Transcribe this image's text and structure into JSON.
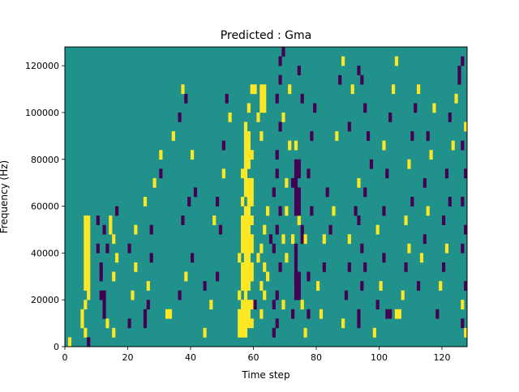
{
  "chart_data": {
    "type": "heatmap",
    "title": "Predicted : Gma",
    "xlabel": "Time step",
    "ylabel": "Frequency (Hz)",
    "xlim": [
      0,
      128
    ],
    "ylim": [
      0,
      128000
    ],
    "x_ticks": [
      0,
      20,
      40,
      60,
      80,
      100,
      120
    ],
    "y_ticks": [
      0,
      20000,
      40000,
      60000,
      80000,
      100000,
      120000
    ],
    "x_tick_labels": [
      "0",
      "20",
      "40",
      "60",
      "80",
      "100",
      "120"
    ],
    "y_tick_labels": [
      "0",
      "20000",
      "40000",
      "60000",
      "80000",
      "100000",
      "120000"
    ],
    "grid": false,
    "value_levels": {
      "low": 0,
      "mid": 1,
      "high": 2
    },
    "background_value": 1,
    "colors": {
      "low": "#440154",
      "mid": "#21918c",
      "high": "#fde725"
    },
    "cell_height_hz": 4000,
    "cells": [
      [
        1,
        0,
        2
      ],
      [
        5,
        2,
        2
      ],
      [
        5,
        3,
        2
      ],
      [
        6,
        1,
        2
      ],
      [
        6,
        4,
        2
      ],
      [
        7,
        0,
        0
      ],
      [
        7,
        5,
        2
      ],
      [
        11,
        5,
        0
      ],
      [
        13,
        2,
        2
      ],
      [
        6,
        6,
        2
      ],
      [
        6,
        7,
        2
      ],
      [
        6,
        8,
        2
      ],
      [
        6,
        9,
        2
      ],
      [
        6,
        10,
        2
      ],
      [
        6,
        11,
        2
      ],
      [
        6,
        12,
        2
      ],
      [
        6,
        13,
        2
      ],
      [
        7,
        6,
        2
      ],
      [
        7,
        7,
        2
      ],
      [
        7,
        8,
        2
      ],
      [
        7,
        9,
        2
      ],
      [
        7,
        10,
        2
      ],
      [
        7,
        11,
        2
      ],
      [
        7,
        12,
        2
      ],
      [
        7,
        13,
        2
      ],
      [
        12,
        3,
        0
      ],
      [
        12,
        4,
        0
      ],
      [
        12,
        5,
        0
      ],
      [
        11,
        7,
        0
      ],
      [
        11,
        8,
        0
      ],
      [
        10,
        10,
        0
      ],
      [
        13,
        10,
        0
      ],
      [
        12,
        12,
        0
      ],
      [
        10,
        13,
        0
      ],
      [
        14,
        12,
        2
      ],
      [
        14,
        13,
        2
      ],
      [
        15,
        1,
        2
      ],
      [
        15,
        7,
        2
      ],
      [
        16,
        9,
        2
      ],
      [
        15,
        11,
        2
      ],
      [
        16,
        14,
        0
      ],
      [
        20,
        2,
        0
      ],
      [
        21,
        5,
        2
      ],
      [
        22,
        8,
        2
      ],
      [
        20,
        10,
        0
      ],
      [
        22,
        12,
        2
      ],
      [
        25,
        2,
        0
      ],
      [
        25,
        3,
        0
      ],
      [
        26,
        4,
        0
      ],
      [
        26,
        6,
        2
      ],
      [
        27,
        9,
        0
      ],
      [
        27,
        12,
        0
      ],
      [
        25,
        15,
        2
      ],
      [
        28,
        17,
        2
      ],
      [
        30,
        18,
        0
      ],
      [
        30,
        20,
        2
      ],
      [
        32,
        3,
        2
      ],
      [
        33,
        3,
        2
      ],
      [
        36,
        5,
        0
      ],
      [
        38,
        7,
        2
      ],
      [
        40,
        9,
        0
      ],
      [
        37,
        13,
        0
      ],
      [
        39,
        15,
        0
      ],
      [
        41,
        16,
        0
      ],
      [
        40,
        20,
        2
      ],
      [
        34,
        22,
        2
      ],
      [
        36,
        24,
        0
      ],
      [
        38,
        26,
        0
      ],
      [
        37,
        27,
        2
      ],
      [
        44,
        6,
        0
      ],
      [
        44,
        1,
        2
      ],
      [
        46,
        4,
        2
      ],
      [
        48,
        7,
        0
      ],
      [
        47,
        13,
        2
      ],
      [
        49,
        12,
        0
      ],
      [
        48,
        15,
        0
      ],
      [
        50,
        18,
        2
      ],
      [
        50,
        21,
        0
      ],
      [
        52,
        24,
        2
      ],
      [
        51,
        26,
        0
      ],
      [
        55,
        1,
        2
      ],
      [
        55,
        2,
        2
      ],
      [
        55,
        3,
        2
      ],
      [
        55,
        5,
        2
      ],
      [
        55,
        9,
        2
      ],
      [
        56,
        1,
        2
      ],
      [
        56,
        2,
        2
      ],
      [
        56,
        3,
        2
      ],
      [
        56,
        4,
        2
      ],
      [
        56,
        6,
        2
      ],
      [
        56,
        7,
        2
      ],
      [
        56,
        8,
        2
      ],
      [
        56,
        10,
        2
      ],
      [
        56,
        11,
        2
      ],
      [
        56,
        12,
        2
      ],
      [
        56,
        13,
        2
      ],
      [
        56,
        15,
        2
      ],
      [
        56,
        18,
        2
      ],
      [
        57,
        1,
        2
      ],
      [
        57,
        2,
        2
      ],
      [
        57,
        3,
        2
      ],
      [
        57,
        4,
        2
      ],
      [
        57,
        5,
        2
      ],
      [
        57,
        6,
        2
      ],
      [
        57,
        7,
        2
      ],
      [
        57,
        8,
        2
      ],
      [
        57,
        9,
        2
      ],
      [
        57,
        10,
        2
      ],
      [
        57,
        11,
        2
      ],
      [
        57,
        12,
        2
      ],
      [
        57,
        13,
        2
      ],
      [
        57,
        14,
        2
      ],
      [
        57,
        16,
        2
      ],
      [
        57,
        17,
        2
      ],
      [
        57,
        18,
        2
      ],
      [
        57,
        19,
        2
      ],
      [
        57,
        20,
        2
      ],
      [
        57,
        21,
        2
      ],
      [
        57,
        22,
        2
      ],
      [
        57,
        23,
        2
      ],
      [
        58,
        2,
        2
      ],
      [
        58,
        3,
        2
      ],
      [
        58,
        4,
        2
      ],
      [
        58,
        6,
        2
      ],
      [
        58,
        7,
        2
      ],
      [
        58,
        8,
        2
      ],
      [
        58,
        9,
        2
      ],
      [
        58,
        10,
        2
      ],
      [
        58,
        11,
        2
      ],
      [
        58,
        12,
        2
      ],
      [
        58,
        13,
        2
      ],
      [
        58,
        14,
        2
      ],
      [
        58,
        15,
        2
      ],
      [
        58,
        16,
        2
      ],
      [
        58,
        17,
        2
      ],
      [
        58,
        19,
        2
      ],
      [
        58,
        20,
        2
      ],
      [
        58,
        21,
        2
      ],
      [
        58,
        22,
        2
      ],
      [
        59,
        2,
        2
      ],
      [
        59,
        4,
        2
      ],
      [
        59,
        7,
        2
      ],
      [
        59,
        8,
        2
      ],
      [
        59,
        10,
        2
      ],
      [
        59,
        11,
        2
      ],
      [
        59,
        13,
        2
      ],
      [
        59,
        15,
        2
      ],
      [
        59,
        16,
        2
      ],
      [
        59,
        17,
        2
      ],
      [
        59,
        20,
        2
      ],
      [
        60,
        4,
        0
      ],
      [
        61,
        9,
        2
      ],
      [
        62,
        10,
        2
      ],
      [
        62,
        3,
        2
      ],
      [
        62,
        6,
        2
      ],
      [
        63,
        5,
        2
      ],
      [
        63,
        8,
        2
      ],
      [
        63,
        12,
        2
      ],
      [
        64,
        7,
        2
      ],
      [
        65,
        11,
        0
      ],
      [
        64,
        14,
        2
      ],
      [
        62,
        22,
        2
      ],
      [
        61,
        24,
        2
      ],
      [
        62,
        25,
        2
      ],
      [
        63,
        25,
        2
      ],
      [
        62,
        26,
        2
      ],
      [
        63,
        26,
        2
      ],
      [
        62,
        27,
        2
      ],
      [
        63,
        27,
        2
      ],
      [
        60,
        27,
        2
      ],
      [
        59,
        27,
        2
      ],
      [
        58,
        25,
        2
      ],
      [
        66,
        1,
        0
      ],
      [
        67,
        2,
        0
      ],
      [
        66,
        4,
        0
      ],
      [
        67,
        5,
        0
      ],
      [
        68,
        8,
        0
      ],
      [
        66,
        10,
        0
      ],
      [
        67,
        12,
        0
      ],
      [
        68,
        14,
        0
      ],
      [
        66,
        16,
        0
      ],
      [
        67,
        18,
        0
      ],
      [
        67,
        20,
        0
      ],
      [
        68,
        23,
        0
      ],
      [
        67,
        26,
        0
      ],
      [
        68,
        28,
        0
      ],
      [
        68,
        30,
        0
      ],
      [
        69,
        31,
        0
      ],
      [
        69,
        4,
        2
      ],
      [
        70,
        9,
        2
      ],
      [
        69,
        11,
        2
      ],
      [
        70,
        14,
        2
      ],
      [
        70,
        17,
        2
      ],
      [
        71,
        21,
        2
      ],
      [
        69,
        24,
        2
      ],
      [
        71,
        27,
        2
      ],
      [
        72,
        3,
        0
      ],
      [
        73,
        7,
        0
      ],
      [
        72,
        11,
        2
      ],
      [
        74,
        13,
        2
      ],
      [
        72,
        17,
        0
      ],
      [
        73,
        21,
        2
      ],
      [
        75,
        26,
        0
      ],
      [
        74,
        29,
        0
      ],
      [
        73,
        5,
        0
      ],
      [
        73,
        6,
        0
      ],
      [
        73,
        7,
        0
      ],
      [
        73,
        8,
        0
      ],
      [
        73,
        9,
        0
      ],
      [
        73,
        10,
        0
      ],
      [
        73,
        14,
        0
      ],
      [
        73,
        15,
        0
      ],
      [
        73,
        16,
        0
      ],
      [
        73,
        17,
        0
      ],
      [
        73,
        18,
        0
      ],
      [
        73,
        19,
        0
      ],
      [
        74,
        5,
        0
      ],
      [
        74,
        6,
        0
      ],
      [
        74,
        7,
        0
      ],
      [
        74,
        14,
        0
      ],
      [
        74,
        15,
        0
      ],
      [
        74,
        16,
        0
      ],
      [
        74,
        18,
        0
      ],
      [
        74,
        19,
        0
      ],
      [
        75,
        11,
        0
      ],
      [
        75,
        12,
        0
      ],
      [
        76,
        1,
        2
      ],
      [
        75,
        4,
        2
      ],
      [
        77,
        3,
        0
      ],
      [
        77,
        7,
        0
      ],
      [
        76,
        11,
        2
      ],
      [
        78,
        14,
        0
      ],
      [
        77,
        18,
        0
      ],
      [
        78,
        22,
        0
      ],
      [
        79,
        25,
        0
      ],
      [
        80,
        6,
        2
      ],
      [
        81,
        3,
        2
      ],
      [
        82,
        8,
        0
      ],
      [
        82,
        11,
        2
      ],
      [
        84,
        12,
        0
      ],
      [
        85,
        14,
        2
      ],
      [
        83,
        16,
        0
      ],
      [
        86,
        22,
        2
      ],
      [
        87,
        28,
        0
      ],
      [
        88,
        30,
        2
      ],
      [
        88,
        2,
        2
      ],
      [
        89,
        5,
        0
      ],
      [
        90,
        8,
        0
      ],
      [
        90,
        11,
        2
      ],
      [
        92,
        14,
        0
      ],
      [
        93,
        17,
        2
      ],
      [
        90,
        23,
        0
      ],
      [
        91,
        27,
        2
      ],
      [
        93,
        29,
        0
      ],
      [
        93,
        2,
        0
      ],
      [
        93,
        3,
        0
      ],
      [
        94,
        6,
        0
      ],
      [
        95,
        8,
        0
      ],
      [
        94,
        10,
        0
      ],
      [
        93,
        13,
        0
      ],
      [
        95,
        16,
        0
      ],
      [
        97,
        19,
        0
      ],
      [
        96,
        22,
        0
      ],
      [
        95,
        25,
        0
      ],
      [
        94,
        28,
        0
      ],
      [
        98,
        1,
        2
      ],
      [
        99,
        4,
        0
      ],
      [
        100,
        6,
        2
      ],
      [
        101,
        9,
        0
      ],
      [
        99,
        12,
        2
      ],
      [
        101,
        14,
        0
      ],
      [
        102,
        18,
        0
      ],
      [
        101,
        21,
        2
      ],
      [
        103,
        24,
        0
      ],
      [
        104,
        27,
        2
      ],
      [
        105,
        30,
        2
      ],
      [
        102,
        3,
        0
      ],
      [
        103,
        3,
        0
      ],
      [
        105,
        3,
        2
      ],
      [
        106,
        3,
        2
      ],
      [
        107,
        5,
        2
      ],
      [
        108,
        8,
        0
      ],
      [
        109,
        10,
        2
      ],
      [
        108,
        13,
        2
      ],
      [
        110,
        15,
        0
      ],
      [
        109,
        19,
        2
      ],
      [
        110,
        22,
        0
      ],
      [
        111,
        25,
        0
      ],
      [
        112,
        27,
        2
      ],
      [
        112,
        6,
        0
      ],
      [
        113,
        9,
        2
      ],
      [
        114,
        11,
        0
      ],
      [
        115,
        14,
        2
      ],
      [
        114,
        17,
        0
      ],
      [
        116,
        20,
        2
      ],
      [
        115,
        22,
        0
      ],
      [
        117,
        25,
        2
      ],
      [
        118,
        3,
        0
      ],
      [
        119,
        6,
        2
      ],
      [
        120,
        8,
        0
      ],
      [
        121,
        10,
        2
      ],
      [
        120,
        13,
        0
      ],
      [
        122,
        15,
        0
      ],
      [
        121,
        18,
        0
      ],
      [
        123,
        21,
        2
      ],
      [
        122,
        24,
        0
      ],
      [
        124,
        26,
        2
      ],
      [
        125,
        28,
        0
      ],
      [
        126,
        2,
        0
      ],
      [
        127,
        1,
        2
      ],
      [
        126,
        4,
        2
      ],
      [
        127,
        6,
        0
      ],
      [
        126,
        10,
        0
      ],
      [
        127,
        12,
        0
      ],
      [
        126,
        15,
        0
      ],
      [
        127,
        18,
        0
      ],
      [
        126,
        21,
        0
      ],
      [
        127,
        23,
        2
      ],
      [
        125,
        29,
        0
      ],
      [
        126,
        30,
        0
      ]
    ]
  }
}
